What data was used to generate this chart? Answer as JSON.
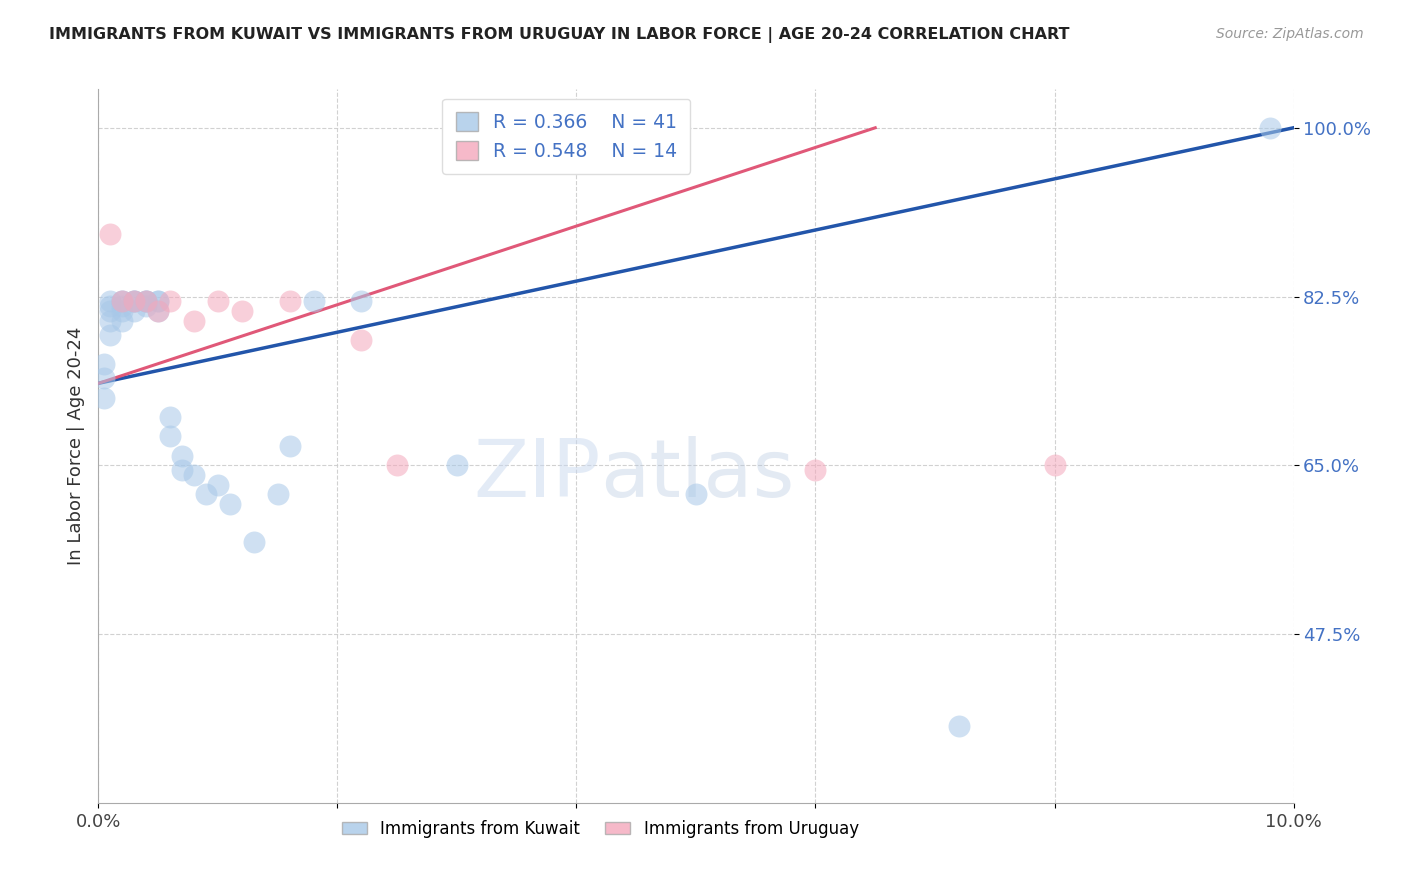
{
  "title": "IMMIGRANTS FROM KUWAIT VS IMMIGRANTS FROM URUGUAY IN LABOR FORCE | AGE 20-24 CORRELATION CHART",
  "source": "Source: ZipAtlas.com",
  "ylabel": "In Labor Force | Age 20-24",
  "xlim": [
    0.0,
    0.1
  ],
  "ylim": [
    0.3,
    1.04
  ],
  "yticks": [
    0.475,
    0.65,
    0.825,
    1.0
  ],
  "ytick_labels": [
    "47.5%",
    "65.0%",
    "82.5%",
    "100.0%"
  ],
  "xticks": [
    0.0,
    0.02,
    0.04,
    0.06,
    0.08,
    0.1
  ],
  "xtick_labels": [
    "0.0%",
    "",
    "",
    "",
    "",
    "10.0%"
  ],
  "kuwait_R": 0.366,
  "kuwait_N": 41,
  "uruguay_R": 0.548,
  "uruguay_N": 14,
  "kuwait_color": "#a8c8e8",
  "uruguay_color": "#f4a8bc",
  "kuwait_line_color": "#2255aa",
  "uruguay_line_color": "#e05878",
  "watermark_zip": "ZIP",
  "watermark_atlas": "atlas",
  "kuwait_x": [
    0.0005,
    0.0005,
    0.0005,
    0.001,
    0.001,
    0.001,
    0.001,
    0.001,
    0.002,
    0.002,
    0.002,
    0.002,
    0.002,
    0.003,
    0.003,
    0.003,
    0.003,
    0.004,
    0.004,
    0.004,
    0.004,
    0.005,
    0.005,
    0.005,
    0.006,
    0.006,
    0.007,
    0.007,
    0.008,
    0.009,
    0.01,
    0.011,
    0.013,
    0.015,
    0.016,
    0.018,
    0.022,
    0.03,
    0.05,
    0.072,
    0.098
  ],
  "kuwait_y": [
    0.755,
    0.74,
    0.72,
    0.82,
    0.815,
    0.81,
    0.8,
    0.785,
    0.82,
    0.82,
    0.815,
    0.81,
    0.8,
    0.82,
    0.82,
    0.82,
    0.81,
    0.82,
    0.82,
    0.82,
    0.815,
    0.82,
    0.82,
    0.81,
    0.7,
    0.68,
    0.66,
    0.645,
    0.64,
    0.62,
    0.63,
    0.61,
    0.57,
    0.62,
    0.67,
    0.82,
    0.82,
    0.65,
    0.62,
    0.38,
    1.0
  ],
  "uruguay_x": [
    0.001,
    0.002,
    0.003,
    0.004,
    0.005,
    0.006,
    0.008,
    0.01,
    0.012,
    0.016,
    0.022,
    0.025,
    0.06,
    0.08
  ],
  "uruguay_y": [
    0.89,
    0.82,
    0.82,
    0.82,
    0.81,
    0.82,
    0.8,
    0.82,
    0.81,
    0.82,
    0.78,
    0.65,
    0.645,
    0.65
  ],
  "blue_line_x": [
    0.0,
    0.1
  ],
  "blue_line_y": [
    0.735,
    1.0
  ],
  "pink_line_x": [
    0.0,
    0.065
  ],
  "pink_line_y": [
    0.735,
    1.0
  ]
}
